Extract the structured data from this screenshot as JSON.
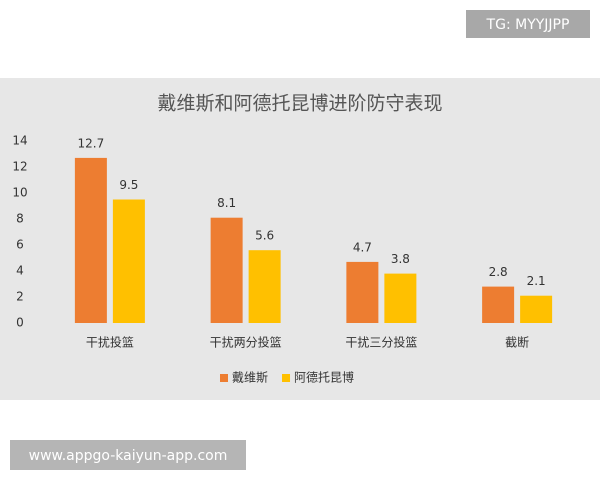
{
  "chart_data": {
    "type": "bar",
    "title": "戴维斯和阿德托昆博进阶防守表现",
    "categories": [
      "干扰投篮",
      "干扰两分投篮",
      "干扰三分投篮",
      "截断"
    ],
    "series": [
      {
        "name": "戴维斯",
        "color": "#ED7D31",
        "values": [
          12.7,
          8.1,
          4.7,
          2.8
        ]
      },
      {
        "name": "阿德托昆博",
        "color": "#FFC000",
        "values": [
          9.5,
          5.6,
          3.8,
          2.1
        ]
      }
    ],
    "ylim": [
      0,
      14
    ],
    "yticks": [
      0,
      2,
      4,
      6,
      8,
      10,
      12,
      14
    ],
    "grid": false,
    "legend": "bottom"
  },
  "watermarks": [
    "TG: MYYJJPP",
    "www.appgo-kaiyun-app.com"
  ]
}
